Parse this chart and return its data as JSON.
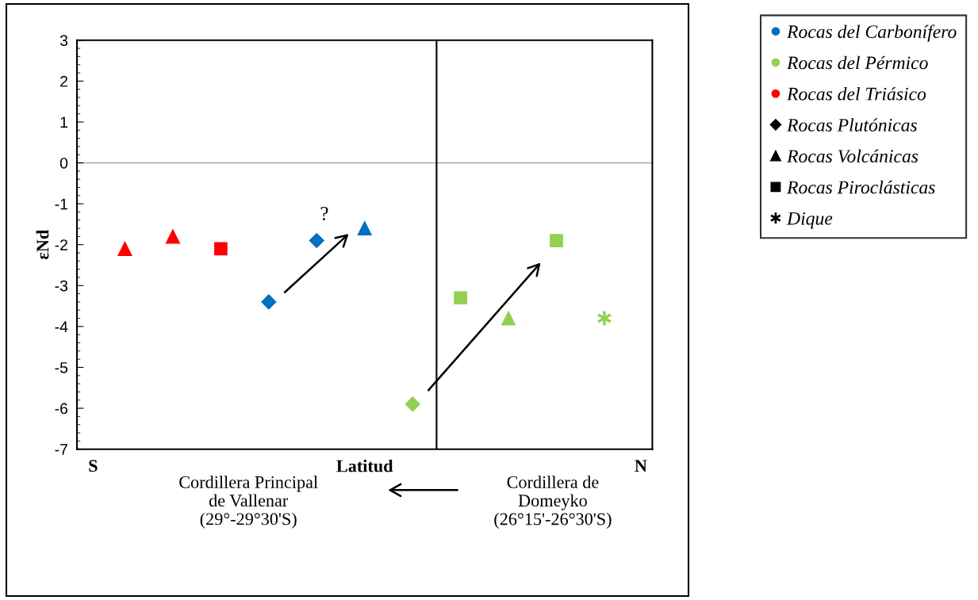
{
  "chart_data": {
    "type": "scatter",
    "xlabel": "Latitud",
    "ylabel": "εNd",
    "categories": [
      null,
      null,
      null,
      null,
      null,
      null,
      null,
      null,
      null,
      null,
      null
    ],
    "series": [
      {
        "color": "#ff0000",
        "marker": "triangle",
        "values": [
          -2.1,
          -1.8,
          null,
          null,
          null,
          null,
          null,
          null,
          null,
          null,
          null
        ]
      },
      {
        "color": "#ff0000",
        "marker": "square",
        "values": [
          null,
          null,
          -2.1,
          null,
          null,
          null,
          null,
          null,
          null,
          null,
          null
        ]
      },
      {
        "color": "#0070c0",
        "marker": "diamond",
        "values": [
          null,
          null,
          null,
          -3.4,
          -1.9,
          null,
          null,
          null,
          null,
          null,
          null
        ]
      },
      {
        "color": "#0070c0",
        "marker": "triangle",
        "values": [
          null,
          null,
          null,
          null,
          null,
          -1.6,
          null,
          null,
          null,
          null,
          null
        ]
      },
      {
        "color": "#92d050",
        "marker": "diamond",
        "values": [
          null,
          null,
          null,
          null,
          null,
          null,
          -5.9,
          null,
          null,
          null,
          null
        ]
      },
      {
        "color": "#92d050",
        "marker": "square",
        "values": [
          null,
          null,
          null,
          null,
          null,
          null,
          null,
          -3.3,
          null,
          -1.9,
          null
        ]
      },
      {
        "color": "#92d050",
        "marker": "triangle",
        "values": [
          null,
          null,
          null,
          null,
          null,
          null,
          null,
          null,
          -3.8,
          null,
          null
        ]
      },
      {
        "color": "#92d050",
        "marker": "cross",
        "values": [
          null,
          null,
          null,
          null,
          null,
          null,
          null,
          null,
          null,
          null,
          -3.8
        ]
      },
      {
        "name": "Rocas del Carbonífero",
        "color": "#0070c0",
        "marker": "circle",
        "values": [
          null,
          null,
          null,
          null,
          null,
          null,
          null,
          null,
          null,
          null,
          null
        ]
      },
      {
        "name": "Rocas del Pérmico",
        "color": "#92d050",
        "marker": "circle",
        "values": [
          null,
          null,
          null,
          null,
          null,
          null,
          null,
          null,
          null,
          null,
          null
        ]
      },
      {
        "name": "Rocas del Triásico",
        "color": "#ff0000",
        "marker": "circle",
        "values": [
          null,
          null,
          null,
          null,
          null,
          null,
          null,
          null,
          null,
          null,
          null
        ]
      },
      {
        "name": "Rocas Plutónicas",
        "color": "#000000",
        "marker": "diamond",
        "values": [
          null,
          null,
          null,
          null,
          null,
          null,
          null,
          null,
          null,
          null,
          null
        ]
      },
      {
        "name": "Rocas Volcánicas",
        "color": "#000000",
        "marker": "triangle",
        "values": [
          null,
          null,
          null,
          null,
          null,
          null,
          null,
          null,
          null,
          null,
          null
        ]
      },
      {
        "name": "Rocas Piroclásticas",
        "color": "#000000",
        "marker": "square",
        "values": [
          null,
          null,
          null,
          null,
          null,
          null,
          null,
          null,
          null,
          null,
          null
        ]
      },
      {
        "name": "Dique",
        "color": "#000000",
        "marker": "cross",
        "values": [
          null,
          null,
          null,
          null,
          null,
          null,
          null,
          null,
          null,
          null,
          null
        ]
      }
    ],
    "ylim": [
      -7,
      3
    ],
    "yticks": [
      -7,
      -6,
      -5,
      -4,
      -3,
      -2,
      -1,
      0,
      1,
      2,
      3
    ],
    "ref_lines": [
      {
        "axis": "y",
        "value": 0,
        "color": "#a6a6a6"
      }
    ],
    "annotations": [
      "?",
      "S",
      "N",
      "Cordillera Principal\nde Vallenar\n(29°-29°30'S)",
      "Cordillera de\nDomeyko\n(26°15'-26°30'S)"
    ],
    "grid": false,
    "legend": "top right"
  }
}
